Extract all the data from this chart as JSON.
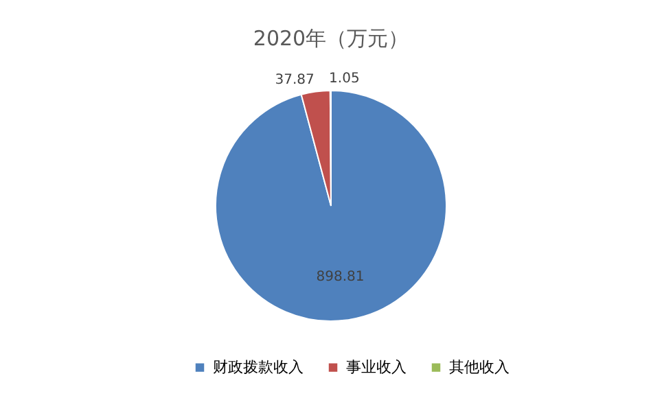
{
  "chart_data": {
    "type": "pie",
    "title": "2020年（万元）",
    "categories": [
      "财政拨款收入",
      "事业收入",
      "其他收入"
    ],
    "values": [
      898.81,
      37.87,
      1.05
    ],
    "colors": [
      "#4f81bd",
      "#c0504d",
      "#9bbb59"
    ],
    "data_labels": true,
    "legend": "bottom"
  }
}
